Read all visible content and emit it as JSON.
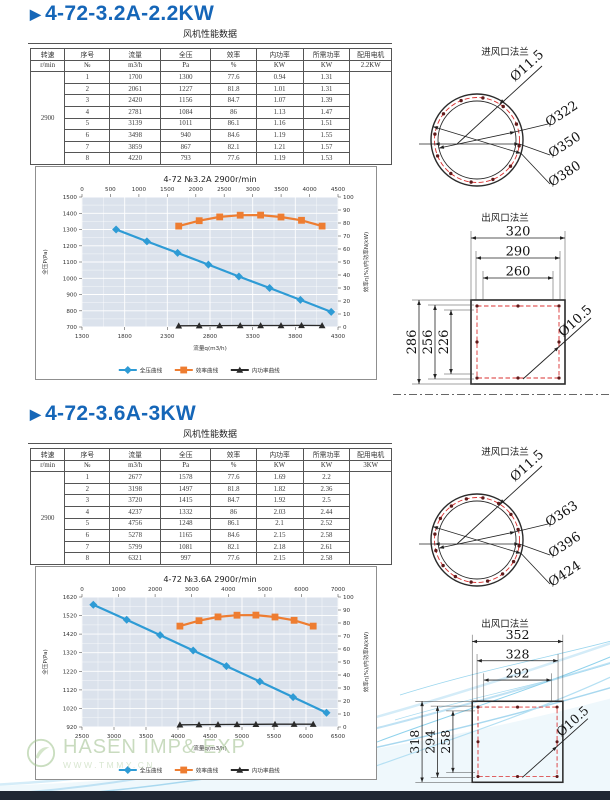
{
  "page": {
    "section_marker": "▶",
    "watermark": {
      "brand": "HASEN IMP& EXP",
      "url": "WWW.TMMY.CN"
    },
    "colors": {
      "accent_blue": "#1566B8",
      "pressure_line": "#2E9BD5",
      "efficiency_line": "#EE7D31",
      "power_line": "#2A2A2A",
      "bolt_circle_red": "#D93030"
    }
  },
  "sections": [
    {
      "title": "4-72-3.2A-2.2KW",
      "table_caption": "风机性能数据",
      "table": {
        "headers": [
          "转速",
          "序号",
          "流量",
          "全压",
          "效率",
          "内功率",
          "所需功率",
          "配用电机"
        ],
        "units": [
          "r/min",
          "№",
          "m3/h",
          "Pa",
          "%",
          "KW",
          "KW",
          "2.2KW"
        ],
        "speed": "2900",
        "rows": [
          [
            "1",
            "1700",
            "1300",
            "77.6",
            "0.94",
            "1.31"
          ],
          [
            "2",
            "2061",
            "1227",
            "81.8",
            "1.01",
            "1.31"
          ],
          [
            "3",
            "2420",
            "1156",
            "84.7",
            "1.07",
            "1.39"
          ],
          [
            "4",
            "2781",
            "1084",
            "86",
            "1.13",
            "1.47"
          ],
          [
            "5",
            "3139",
            "1011",
            "86.1",
            "1.16",
            "1.51"
          ],
          [
            "6",
            "3498",
            "940",
            "84.6",
            "1.19",
            "1.55"
          ],
          [
            "7",
            "3859",
            "867",
            "82.1",
            "1.21",
            "1.57"
          ],
          [
            "8",
            "4220",
            "793",
            "77.6",
            "1.19",
            "1.53"
          ]
        ]
      },
      "chart_data": {
        "type": "line",
        "title": "4-72 №3.2A 2900r/min",
        "xlabel": "流量q(m3/h)",
        "ylabel_left": "全压P(Pa)",
        "ylabel_right": "效率η(%)/内功率N(kW)",
        "x_bottom": {
          "min": 1300,
          "max": 4300,
          "step": 500
        },
        "x_top": {
          "min": 0,
          "max": 4500,
          "step": 500
        },
        "y_left": {
          "min": 700,
          "max": 1500,
          "step": 100
        },
        "y_right": {
          "min": 0,
          "max": 100,
          "step": 10
        },
        "grid": true,
        "legend_position": "bottom",
        "x": [
          1700,
          2061,
          2420,
          2781,
          3139,
          3498,
          3859,
          4220
        ],
        "series": [
          {
            "name": "全压曲线",
            "y_axis": "left",
            "x_axis": "bottom",
            "marker": "diamond",
            "color": "#2E9BD5",
            "values": [
              1300,
              1227,
              1156,
              1084,
              1011,
              940,
              867,
              793
            ]
          },
          {
            "name": "效率曲线",
            "y_axis": "right",
            "x_axis": "top",
            "marker": "square",
            "color": "#EE7D31",
            "values": [
              77.6,
              81.8,
              84.7,
              86,
              86.1,
              84.6,
              82.1,
              77.6
            ]
          },
          {
            "name": "内功率曲线",
            "y_axis": "right",
            "x_axis": "top",
            "marker": "triangle",
            "color": "#2A2A2A",
            "values": [
              0.94,
              1.01,
              1.07,
              1.13,
              1.16,
              1.19,
              1.21,
              1.19
            ]
          }
        ]
      },
      "inlet_flange": {
        "title": "进风口法兰",
        "bolt_hole": "Ø11.5",
        "diameters": [
          "Ø322",
          "Ø350",
          "Ø380"
        ]
      },
      "outlet_flange": {
        "title": "出风口法兰",
        "widths": [
          "320",
          "290",
          "260"
        ],
        "heights": [
          "286",
          "256",
          "226"
        ],
        "bolt_hole": "Ø10.5"
      }
    },
    {
      "title": "4-72-3.6A-3KW",
      "table_caption": "风机性能数据",
      "table": {
        "headers": [
          "转速",
          "序号",
          "流量",
          "全压",
          "效率",
          "内功率",
          "所需功率",
          "配用电机"
        ],
        "units": [
          "r/min",
          "№",
          "m3/h",
          "Pa",
          "%",
          "KW",
          "KW",
          "3KW"
        ],
        "speed": "2900",
        "rows": [
          [
            "1",
            "2677",
            "1578",
            "77.6",
            "1.69",
            "2.2"
          ],
          [
            "2",
            "3198",
            "1497",
            "81.8",
            "1.82",
            "2.36"
          ],
          [
            "3",
            "3720",
            "1415",
            "84.7",
            "1.92",
            "2.5"
          ],
          [
            "4",
            "4237",
            "1332",
            "86",
            "2.03",
            "2.44"
          ],
          [
            "5",
            "4756",
            "1248",
            "86.1",
            "2.1",
            "2.52"
          ],
          [
            "6",
            "5278",
            "1165",
            "84.6",
            "2.15",
            "2.58"
          ],
          [
            "7",
            "5799",
            "1081",
            "82.1",
            "2.18",
            "2.61"
          ],
          [
            "8",
            "6321",
            "997",
            "77.6",
            "2.15",
            "2.58"
          ]
        ]
      },
      "chart_data": {
        "type": "line",
        "title": "4-72 №3.6A 2900r/min",
        "xlabel": "流量q(m3/h)",
        "ylabel_left": "全压P(Pa)",
        "ylabel_right": "效率η(%)/内功率N(kW)",
        "x_bottom": {
          "min": 2500,
          "max": 6500,
          "step": 500
        },
        "x_top": {
          "min": 0,
          "max": 7000,
          "step": 1000
        },
        "y_left": {
          "min": 920,
          "max": 1620,
          "step": 100
        },
        "y_right": {
          "min": 0,
          "max": 100,
          "step": 10
        },
        "grid": true,
        "legend_position": "bottom",
        "x": [
          2677,
          3198,
          3720,
          4237,
          4756,
          5278,
          5799,
          6321
        ],
        "series": [
          {
            "name": "全压曲线",
            "y_axis": "left",
            "x_axis": "bottom",
            "marker": "diamond",
            "color": "#2E9BD5",
            "values": [
              1578,
              1497,
              1415,
              1332,
              1248,
              1165,
              1081,
              997
            ]
          },
          {
            "name": "效率曲线",
            "y_axis": "right",
            "x_axis": "top",
            "marker": "square",
            "color": "#EE7D31",
            "values": [
              77.6,
              81.8,
              84.7,
              86,
              86.1,
              84.6,
              82.1,
              77.6
            ]
          },
          {
            "name": "内功率曲线",
            "y_axis": "right",
            "x_axis": "top",
            "marker": "triangle",
            "color": "#2A2A2A",
            "values": [
              1.69,
              1.82,
              1.92,
              2.03,
              2.1,
              2.15,
              2.18,
              2.15
            ]
          }
        ]
      },
      "inlet_flange": {
        "title": "进风口法兰",
        "bolt_hole": "Ø11.5",
        "diameters": [
          "Ø363",
          "Ø396",
          "Ø424"
        ]
      },
      "outlet_flange": {
        "title": "出风口法兰",
        "widths": [
          "352",
          "328",
          "292"
        ],
        "heights": [
          "318",
          "294",
          "258"
        ],
        "bolt_hole": "Ø10.5"
      }
    }
  ]
}
